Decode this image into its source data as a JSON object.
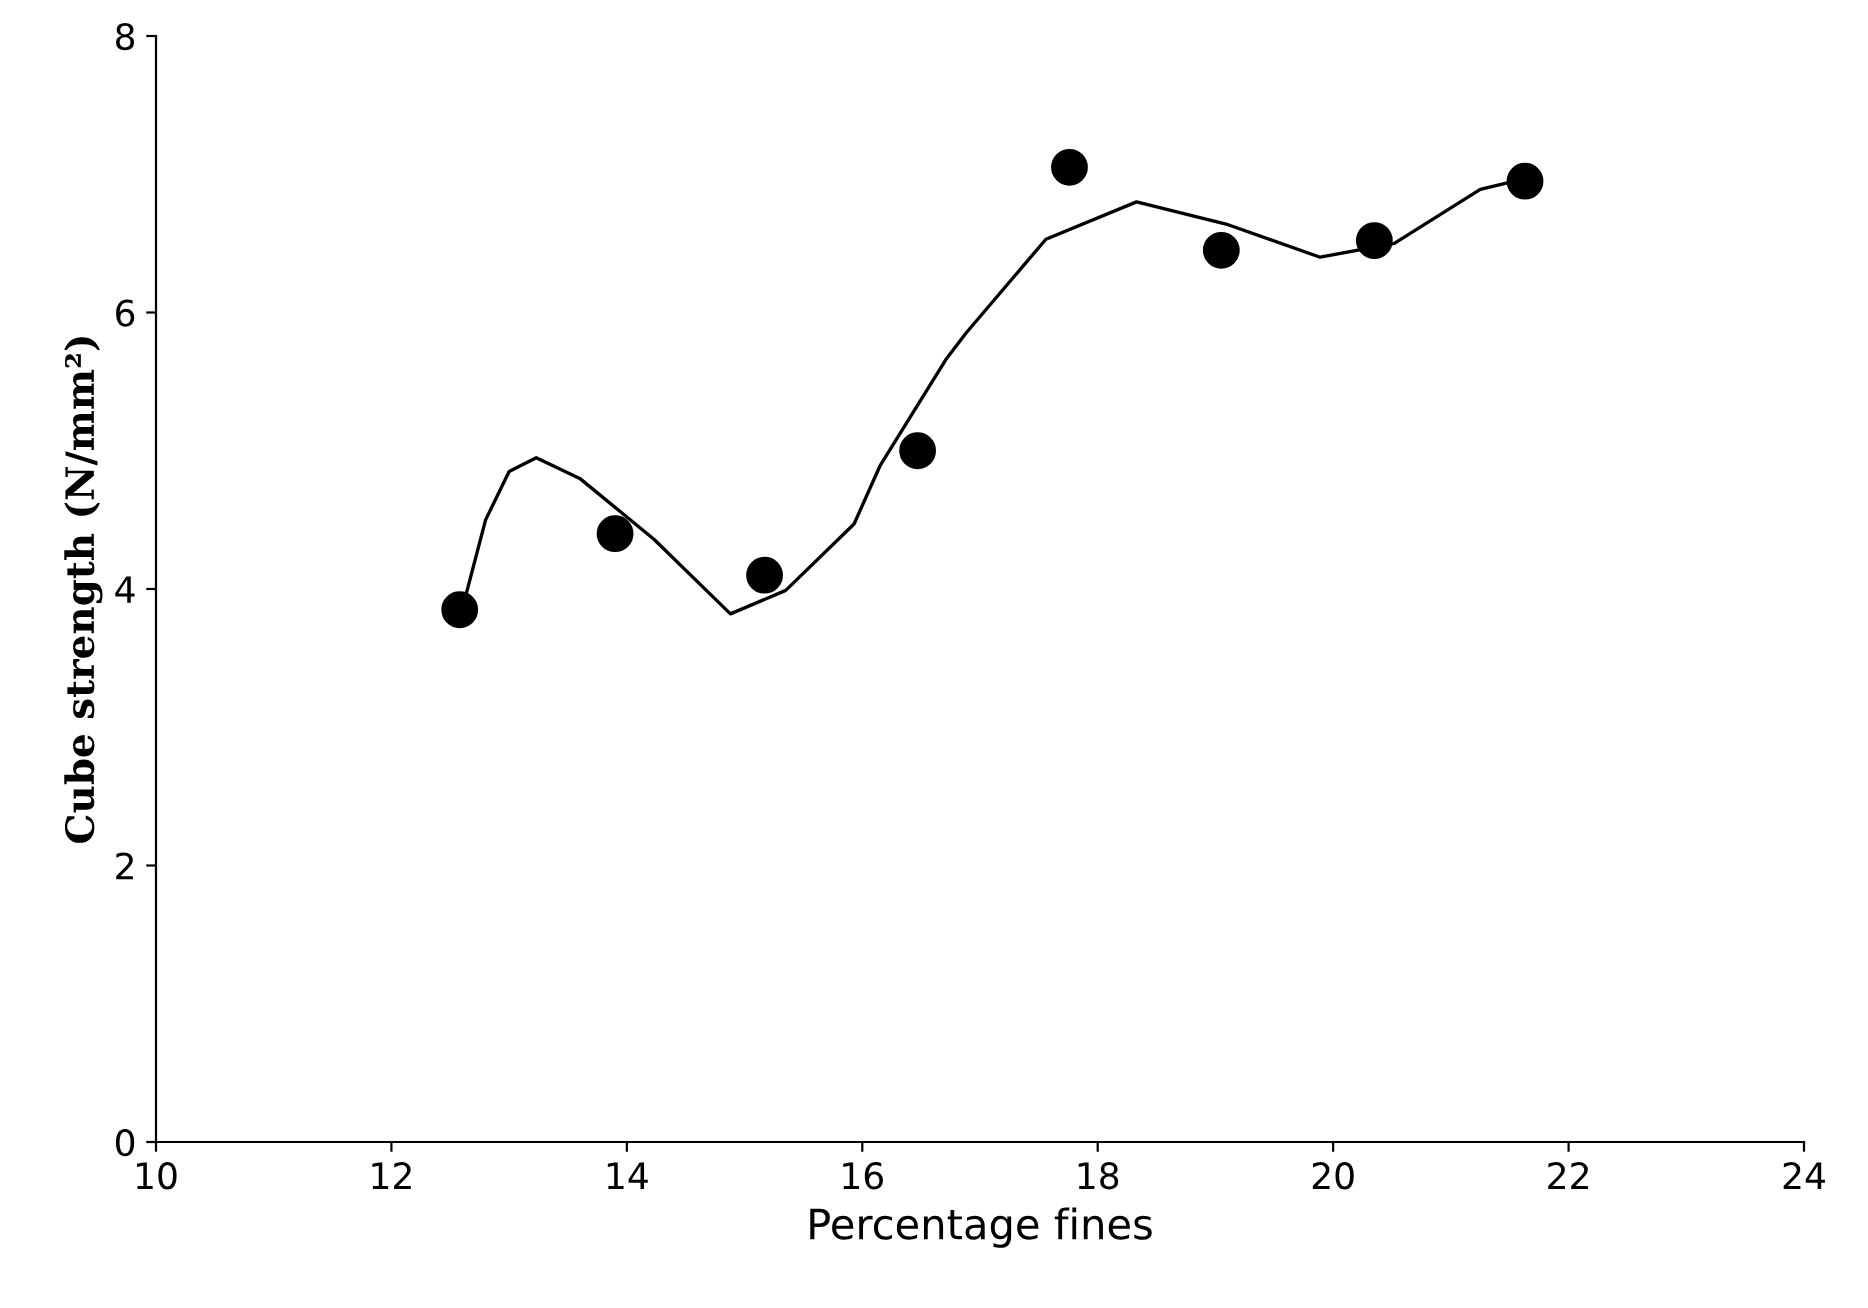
{
  "chart_data": {
    "type": "scatter",
    "xlabel": "Percentage fines",
    "ylabel": "Cube strength (N/mm²)",
    "xlim": [
      10,
      24
    ],
    "xticks": [
      10,
      12,
      14,
      16,
      18,
      20,
      22,
      24
    ],
    "ylim": [
      0,
      8
    ],
    "yticks": [
      0,
      2,
      4,
      6,
      8
    ],
    "grid": false,
    "legend": false,
    "series": [
      {
        "color": "#000000",
        "marker": "circle",
        "x": [
          12.58,
          13.9,
          15.17,
          16.47,
          17.76,
          19.05,
          20.35,
          21.63
        ],
        "values": [
          3.85,
          4.4,
          4.1,
          5.0,
          7.05,
          6.45,
          6.52,
          6.95
        ]
      },
      {
        "type": "line",
        "color": "#000000",
        "marker": "none",
        "line_style": "solid",
        "x": [
          12.6,
          12.8,
          13.0,
          13.23,
          13.6,
          14.23,
          14.88,
          15.35,
          15.93,
          16.15,
          16.71,
          16.88,
          17.56,
          18.33,
          19.09,
          19.89,
          20.52,
          21.25,
          21.59
        ],
        "values": [
          3.85,
          4.5,
          4.85,
          4.95,
          4.8,
          4.36,
          3.82,
          3.99,
          4.47,
          4.89,
          5.66,
          5.85,
          6.53,
          6.8,
          6.64,
          6.4,
          6.5,
          6.89,
          6.96
        ]
      }
    ]
  }
}
